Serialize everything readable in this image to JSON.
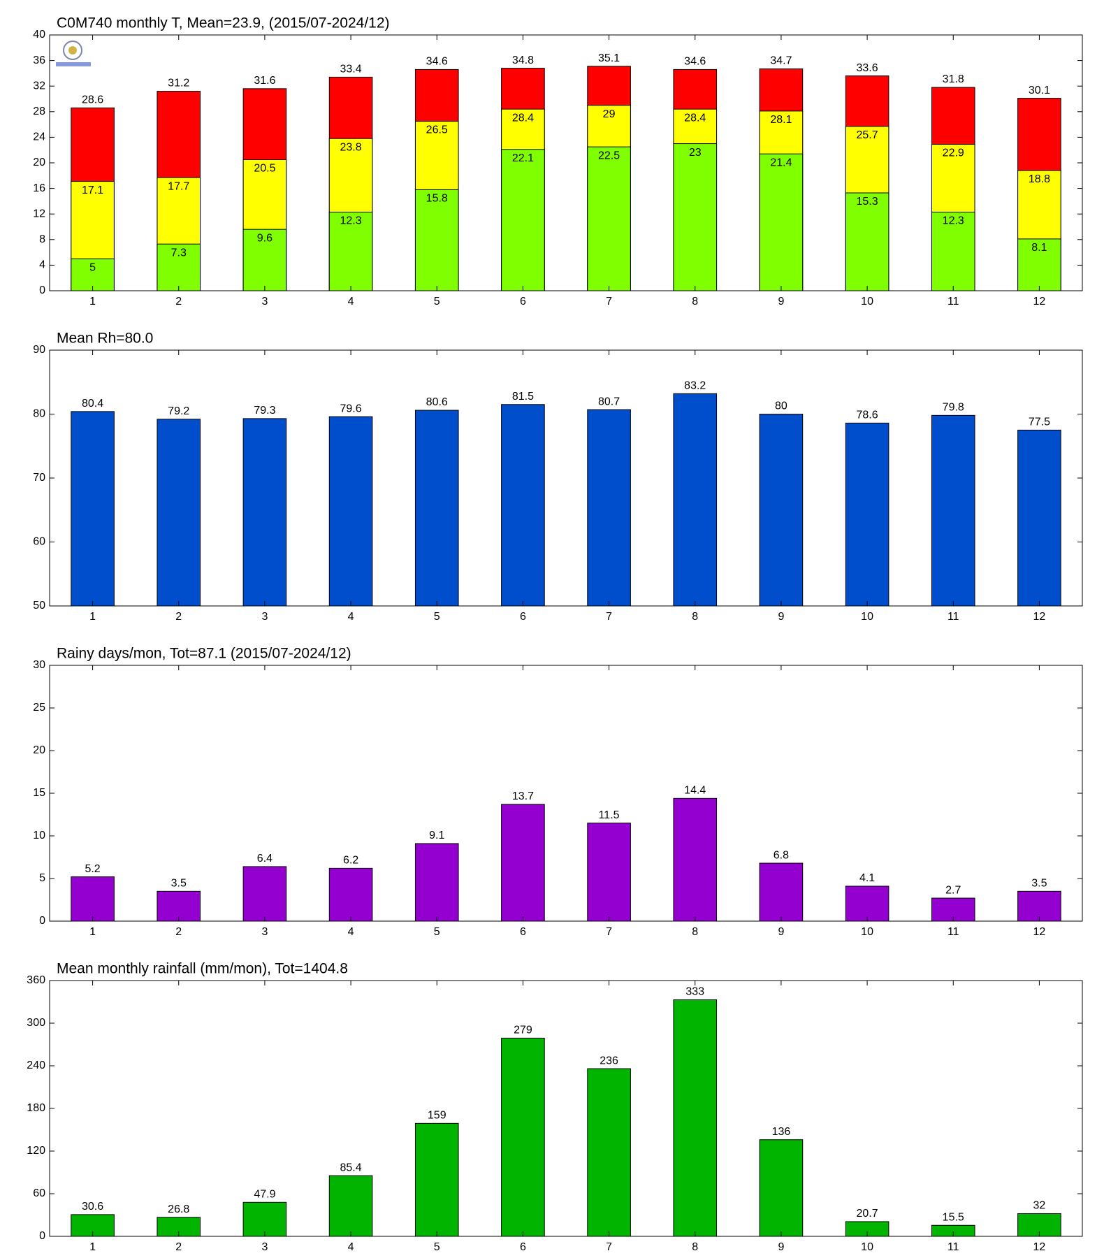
{
  "chart_data": [
    {
      "type": "bar",
      "title": "C0M740 monthly T, Mean=23.9, (2015/07-2024/12)",
      "categories": [
        1,
        2,
        3,
        4,
        5,
        6,
        7,
        8,
        9,
        10,
        11,
        12
      ],
      "series": [
        {
          "color": "#ff0000",
          "values": [
            28.6,
            31.2,
            31.6,
            33.4,
            34.6,
            34.8,
            35.1,
            34.6,
            34.7,
            33.6,
            31.8,
            30.1
          ]
        },
        {
          "color": "#ffff00",
          "values": [
            17.1,
            17.7,
            20.5,
            23.8,
            26.5,
            28.4,
            29,
            28.4,
            28.1,
            25.7,
            22.9,
            18.8
          ]
        },
        {
          "color": "#80ff00",
          "values": [
            5,
            7.3,
            9.6,
            12.3,
            15.8,
            22.1,
            22.5,
            23,
            21.4,
            15.3,
            12.3,
            8.1
          ]
        }
      ],
      "ylim": [
        0,
        40
      ],
      "yticks": [
        0,
        4,
        8,
        12,
        16,
        20,
        24,
        28,
        32,
        36,
        40
      ]
    },
    {
      "type": "bar",
      "title": "Mean Rh=80.0",
      "categories": [
        1,
        2,
        3,
        4,
        5,
        6,
        7,
        8,
        9,
        10,
        11,
        12
      ],
      "series": [
        {
          "color": "#004ecc",
          "values": [
            80.4,
            79.2,
            79.3,
            79.6,
            80.6,
            81.5,
            80.7,
            83.2,
            80,
            78.6,
            79.8,
            77.5
          ]
        }
      ],
      "ylim": [
        50,
        90
      ],
      "yticks": [
        50,
        60,
        70,
        80,
        90
      ]
    },
    {
      "type": "bar",
      "title": "Rainy days/mon, Tot=87.1 (2015/07-2024/12)",
      "categories": [
        1,
        2,
        3,
        4,
        5,
        6,
        7,
        8,
        9,
        10,
        11,
        12
      ],
      "series": [
        {
          "color": "#9400d0",
          "values": [
            5.2,
            3.5,
            6.4,
            6.2,
            9.1,
            13.7,
            11.5,
            14.4,
            6.8,
            4.1,
            2.7,
            3.5
          ]
        }
      ],
      "ylim": [
        0,
        30
      ],
      "yticks": [
        0,
        5,
        10,
        15,
        20,
        25,
        30
      ]
    },
    {
      "type": "bar",
      "title": "Mean monthly rainfall (mm/mon), Tot=1404.8",
      "categories": [
        1,
        2,
        3,
        4,
        5,
        6,
        7,
        8,
        9,
        10,
        11,
        12
      ],
      "series": [
        {
          "color": "#00b400",
          "values": [
            30.6,
            26.8,
            47.9,
            85.4,
            159,
            279,
            236,
            333,
            136,
            20.7,
            15.5,
            32
          ]
        }
      ],
      "ylim": [
        0,
        360
      ],
      "yticks": [
        0,
        60,
        120,
        180,
        240,
        300,
        360
      ]
    }
  ]
}
